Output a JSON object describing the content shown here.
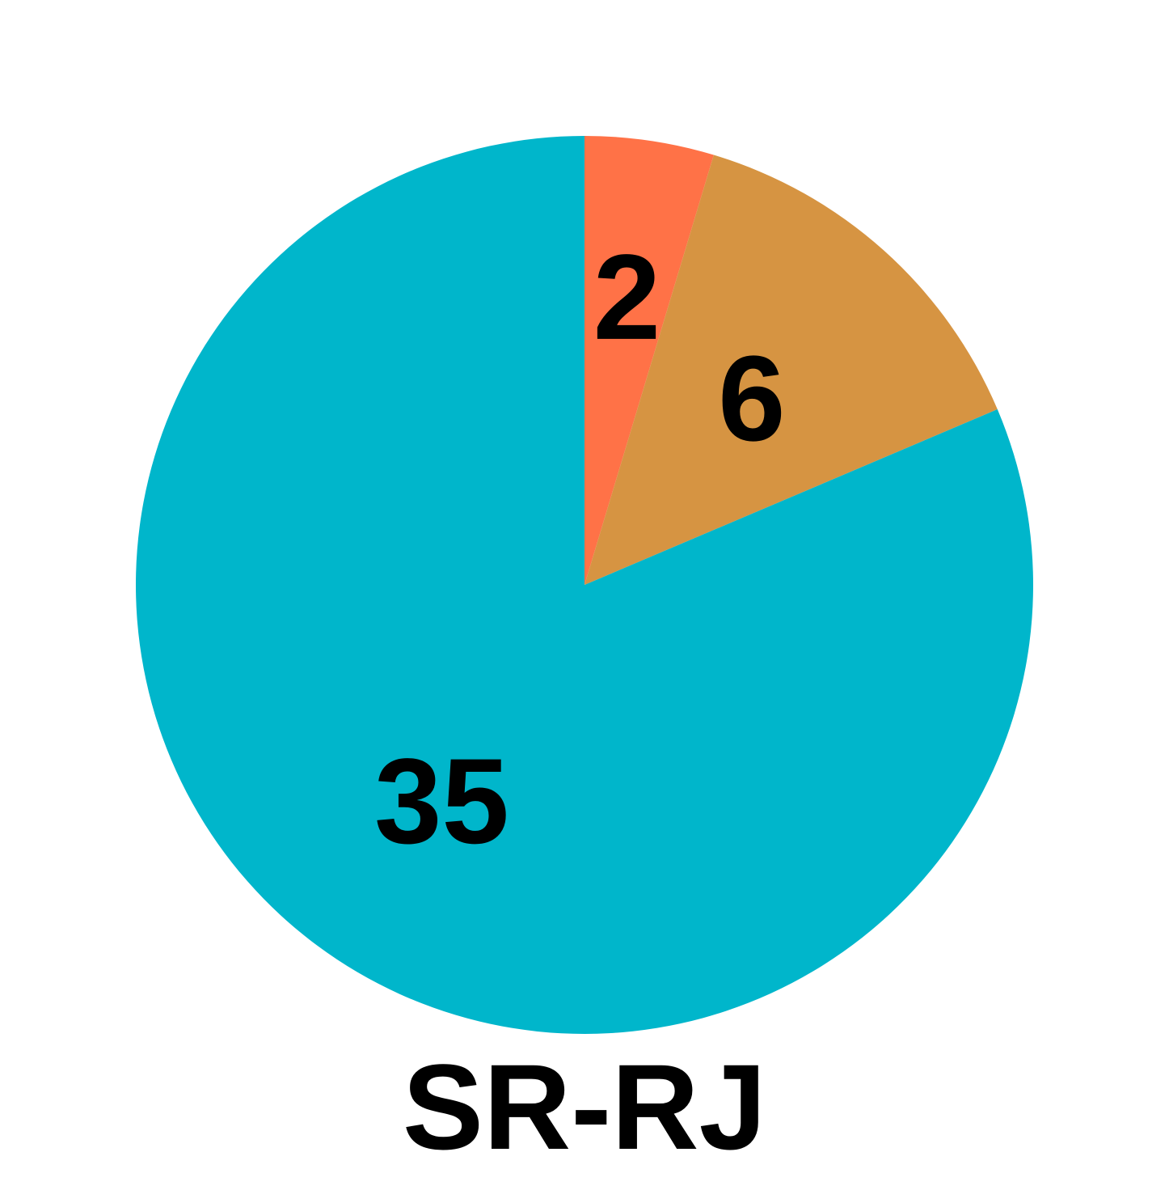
{
  "chart_data": {
    "type": "pie",
    "title": "SR-RJ",
    "start_angle_deg": 0,
    "direction": "clockwise",
    "slices": [
      {
        "label": "2",
        "value": 2,
        "color": "#FF7247"
      },
      {
        "label": "6",
        "value": 6,
        "color": "#D69442"
      },
      {
        "label": "35",
        "value": 35,
        "color": "#00B6CB"
      }
    ]
  }
}
